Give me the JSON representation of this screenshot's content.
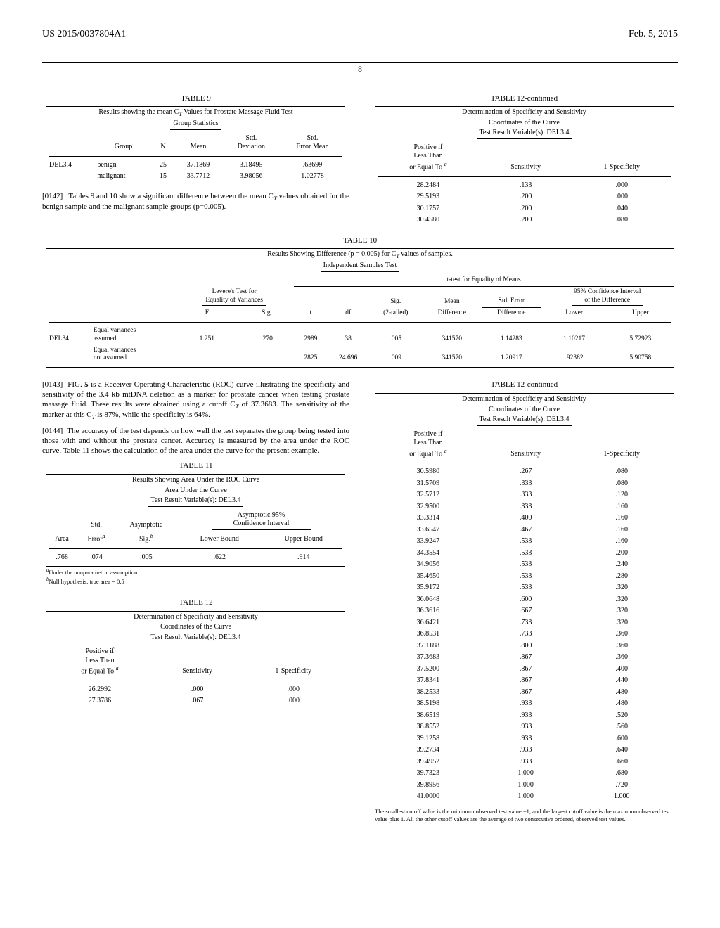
{
  "header": {
    "pub_num": "US 2015/0037804A1",
    "date": "Feb. 5, 2015",
    "page": "8"
  },
  "table9": {
    "title": "TABLE 9",
    "caption1": "Results showing the mean C",
    "caption1b": " Values for Prostate Massage Fluid Test",
    "caption2": "Group Statistics",
    "h_group": "Group",
    "h_n": "N",
    "h_mean": "Mean",
    "h_sd": "Std.\nDeviation",
    "h_sem": "Std.\nError Mean",
    "row_label": "DEL3.4",
    "r1": {
      "group": "benign",
      "n": "25",
      "mean": "37.1869",
      "sd": "3.18495",
      "sem": ".63699"
    },
    "r2": {
      "group": "malignant",
      "n": "15",
      "mean": "33.7712",
      "sd": "3.98056",
      "sem": "1.02778"
    }
  },
  "para0142": {
    "num": "[0142]",
    "text1": "Tables 9 and 10 show a significant difference between the mean C",
    "text2": " values obtained for the benign sample and the malignant sample groups (p=0.005)."
  },
  "table12a": {
    "title": "TABLE 12-continued",
    "c1": "Determination of Specificity and Sensitivity",
    "c2": "Coordinates of the Curve",
    "c3": "Test Result Variable(s): DEL3.4",
    "h1a": "Positive if",
    "h1b": "Less Than",
    "h1c": "or Equal To ",
    "h2": "Sensitivity",
    "h3": "1-Specificity",
    "rows": [
      {
        "a": "28.2484",
        "b": ".133",
        "c": ".000"
      },
      {
        "a": "29.5193",
        "b": ".200",
        "c": ".000"
      },
      {
        "a": "30.1757",
        "b": ".200",
        "c": ".040"
      },
      {
        "a": "30.4580",
        "b": ".200",
        "c": ".080"
      }
    ]
  },
  "table10": {
    "title": "TABLE 10",
    "c1a": "Results Showing Difference (p = 0.005) for C",
    "c1b": " values of samples.",
    "c2": "Independent Samples Test",
    "h_ttest": "t-test for Equality of Means",
    "h_levere1": "Levere's Test for",
    "h_levere2": "Equality of Variances",
    "h_ci1": "95% Confidence Interval",
    "h_ci2": "of the Difference",
    "h_f": "F",
    "h_sig": "Sig.",
    "h_t": "t",
    "h_df": "df",
    "h_sig2": "Sig.",
    "h_2tail": "(2-tailed)",
    "h_mean": "Mean",
    "h_diff": "Difference",
    "h_se": "Std. Error",
    "h_diff2": "Difference",
    "h_lower": "Lower",
    "h_upper": "Upper",
    "row_label": "DEL34",
    "r1": {
      "lbl": "Equal variances\nassumed",
      "f": "1.251",
      "sig": ".270",
      "t": "2989",
      "df": "38",
      "sig2": ".005",
      "md": "341570",
      "sed": "1.14283",
      "low": "1.10217",
      "up": "5.72923"
    },
    "r2": {
      "lbl": "Equal variances\nnot assumed",
      "f": "",
      "sig": "",
      "t": "2825",
      "df": "24.696",
      "sig2": ".009",
      "md": "341570",
      "sed": "1.20917",
      "low": ".92382",
      "up": "5.90758"
    }
  },
  "para0143": {
    "num": "[0143]",
    "t1": "FIG. ",
    "t2": "5",
    "t3": " is a Receiver Operating Characteristic (ROC) curve illustrating the specificity and sensitivity of the 3.4 kb mtDNA deletion as a marker for prostate cancer when testing prostate massage fluid. These results were obtained using a cutoff C",
    "t4": " of 37.3683. The sensitivity of the marker at this C",
    "t5": " is 87%, while the specificity is 64%."
  },
  "para0144": {
    "num": "[0144]",
    "text": "The accuracy of the test depends on how well the test separates the group being tested into those with and without the prostate cancer. Accuracy is measured by the area under the ROC curve. Table 11 shows the calculation of the area under the curve for the present example."
  },
  "table11": {
    "title": "TABLE 11",
    "c1": "Results Showing Area Under the ROC Curve",
    "c2": "Area Under the Curve",
    "c3": "Test Result Variable(s): DEL3.4",
    "h_asymp95": "Asymptotic 95%",
    "h_ci": "Confidence Interval",
    "h_std": "Std.",
    "h_asymp": "Asymptotic",
    "h_area": "Area",
    "h_error": "Error",
    "h_sig": "Sig.",
    "h_lb": "Lower Bound",
    "h_ub": "Upper Bound",
    "r": {
      "area": ".768",
      "err": ".074",
      "sig": ".005",
      "lb": ".622",
      "ub": ".914"
    },
    "fn_a_sup": "a",
    "fn_a": "Under the nonparametric assumption",
    "fn_b_sup": "b",
    "fn_b": "Null hypothesis: true area = 0.5"
  },
  "table12": {
    "title": "TABLE 12",
    "rows": [
      {
        "a": "26.2992",
        "b": ".000",
        "c": ".000"
      },
      {
        "a": "27.3786",
        "b": ".067",
        "c": ".000"
      }
    ]
  },
  "table12b": {
    "title": "TABLE 12-continued",
    "rows": [
      {
        "a": "30.5980",
        "b": ".267",
        "c": ".080"
      },
      {
        "a": "31.5709",
        "b": ".333",
        "c": ".080"
      },
      {
        "a": "32.5712",
        "b": ".333",
        "c": ".120"
      },
      {
        "a": "32.9500",
        "b": ".333",
        "c": ".160"
      },
      {
        "a": "33.3314",
        "b": ".400",
        "c": ".160"
      },
      {
        "a": "33.6547",
        "b": ".467",
        "c": ".160"
      },
      {
        "a": "33.9247",
        "b": ".533",
        "c": ".160"
      },
      {
        "a": "34.3554",
        "b": ".533",
        "c": ".200"
      },
      {
        "a": "34.9056",
        "b": ".533",
        "c": ".240"
      },
      {
        "a": "35.4650",
        "b": ".533",
        "c": ".280"
      },
      {
        "a": "35.9172",
        "b": ".533",
        "c": ".320"
      },
      {
        "a": "36.0648",
        "b": ".600",
        "c": ".320"
      },
      {
        "a": "36.3616",
        "b": ".667",
        "c": ".320"
      },
      {
        "a": "36.6421",
        "b": ".733",
        "c": ".320"
      },
      {
        "a": "36.8531",
        "b": ".733",
        "c": ".360"
      },
      {
        "a": "37.1188",
        "b": ".800",
        "c": ".360"
      },
      {
        "a": "37.3683",
        "b": ".867",
        "c": ".360"
      },
      {
        "a": "37.5200",
        "b": ".867",
        "c": ".400"
      },
      {
        "a": "37.8341",
        "b": ".867",
        "c": ".440"
      },
      {
        "a": "38.2533",
        "b": ".867",
        "c": ".480"
      },
      {
        "a": "38.5198",
        "b": ".933",
        "c": ".480"
      },
      {
        "a": "38.6519",
        "b": ".933",
        "c": ".520"
      },
      {
        "a": "38.8552",
        "b": ".933",
        "c": ".560"
      },
      {
        "a": "39.1258",
        "b": ".933",
        "c": ".600"
      },
      {
        "a": "39.2734",
        "b": ".933",
        "c": ".640"
      },
      {
        "a": "39.4952",
        "b": ".933",
        "c": ".660"
      },
      {
        "a": "39.7323",
        "b": "1.000",
        "c": ".680"
      },
      {
        "a": "39.8956",
        "b": "1.000",
        "c": ".720"
      },
      {
        "a": "41.0000",
        "b": "1.000",
        "c": "1.000"
      }
    ],
    "footnote": "The smallest cutoff value is the minimum observed test value −1, and the largest cutoff value is the maximum observed test value plus 1. All the other cutoff values are the average of two consecutive ordered, observed test values."
  }
}
